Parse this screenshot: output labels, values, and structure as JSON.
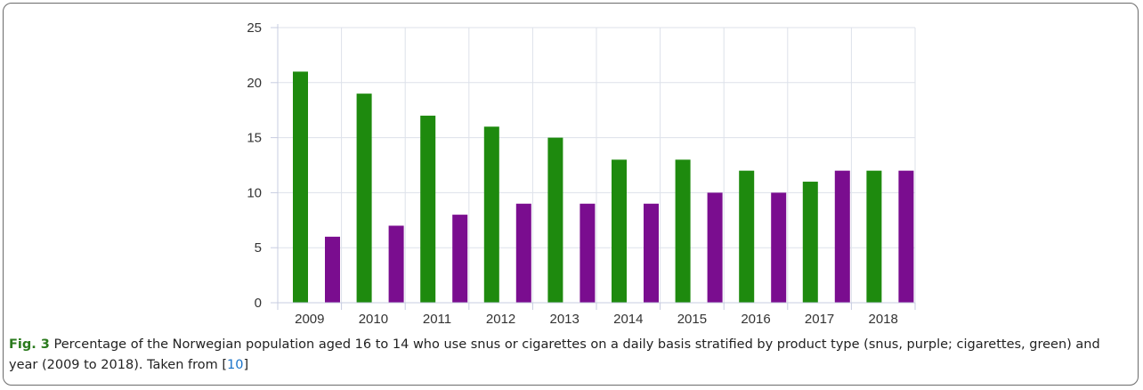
{
  "chart_data": {
    "type": "bar",
    "categories": [
      "2009",
      "2010",
      "2011",
      "2012",
      "2013",
      "2014",
      "2015",
      "2016",
      "2017",
      "2018"
    ],
    "series": [
      {
        "values": [
          21,
          19,
          17,
          16,
          15,
          13,
          13,
          12,
          11,
          12
        ],
        "color": "#1e8a0e"
      },
      {
        "values": [
          6,
          7,
          8,
          9,
          9,
          9,
          10,
          10,
          12,
          12
        ],
        "color": "#7a0d8f"
      }
    ],
    "ylim": [
      0,
      25
    ],
    "yticks": [
      "0",
      "5",
      "10",
      "15",
      "20",
      "25"
    ],
    "grid": true,
    "gridColor": "#dde1ea",
    "axisColor": "#c7cce0"
  },
  "caption": {
    "fig_label": "Fig. 3",
    "text": " Percentage of the Norwegian population aged 16 to 14 who use snus or cigarettes on a daily basis stratified by product type (snus, purple; cigarettes, green) and year (2009 to 2018). Taken from [",
    "ref": "10",
    "close": "]"
  }
}
